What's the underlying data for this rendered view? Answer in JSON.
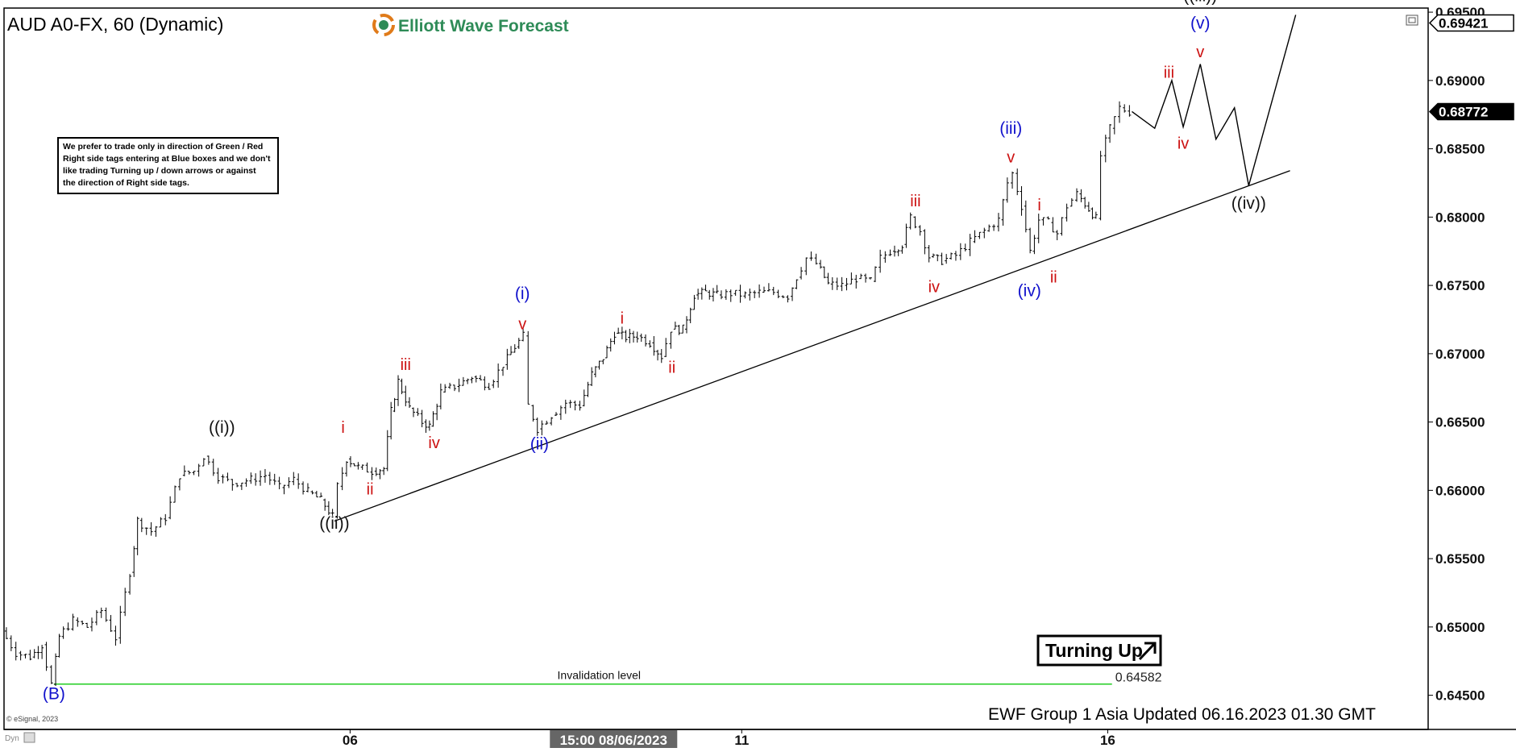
{
  "header": {
    "symbol": "AUD A0-FX, 60 (Dynamic)",
    "brand": "Elliott Wave Forecast"
  },
  "note": {
    "lines": [
      "We prefer to trade only in direction of Green / Red",
      "Right side tags entering at Blue boxes and we don't",
      "like trading Turning up / down arrows or against",
      "the direction of Right side tags."
    ]
  },
  "footer": {
    "copyright": "© eSignal, 2023",
    "updated": "EWF Group 1 Asia Updated 06.16.2023 01.30 GMT",
    "dyn": "Dyn"
  },
  "badge": {
    "label": "Turning Up"
  },
  "colors": {
    "red": "#cc1111",
    "blue": "#1111cc",
    "black": "#111111",
    "invalidation": "#22cc22",
    "brand_green": "#2e8b57"
  },
  "chart_data": {
    "type": "line",
    "symbol": "AUD A0-FX",
    "timeframe": "60",
    "ylim": [
      0.6425,
      0.6953
    ],
    "y_ticks": [
      0.695,
      0.69,
      0.685,
      0.68,
      0.675,
      0.67,
      0.665,
      0.66,
      0.655,
      0.65,
      0.645
    ],
    "y_tick_labels": [
      "0.69500",
      "0.69000",
      "0.68500",
      "0.68000",
      "0.67500",
      "0.67000",
      "0.66500",
      "0.66000",
      "0.65500",
      "0.65000",
      "0.64500"
    ],
    "x_labels": [
      {
        "label": "06",
        "t": 0.243,
        "highlight": false
      },
      {
        "label": "15:00 08/06/2023",
        "t": 0.428,
        "highlight": true
      },
      {
        "label": "11",
        "t": 0.518,
        "highlight": false
      },
      {
        "label": "16",
        "t": 0.775,
        "highlight": false
      }
    ],
    "price_tags": [
      {
        "label": "0.69421",
        "value": 0.69421,
        "style": "boxed"
      },
      {
        "label": "0.68772",
        "value": 0.68772,
        "style": "filled"
      }
    ],
    "invalidation": {
      "label": "Invalidation level",
      "value": 0.64582,
      "value_label": "0.64582",
      "t_start": 0.035,
      "t_end": 0.778
    },
    "trendline": [
      [
        0.232,
        0.65775
      ],
      [
        0.903,
        0.6834
      ]
    ],
    "projection": [
      [
        0.792,
        0.68772
      ],
      [
        0.808,
        0.6865
      ],
      [
        0.82,
        0.69
      ],
      [
        0.828,
        0.6866
      ],
      [
        0.84,
        0.6912
      ],
      [
        0.851,
        0.6857
      ],
      [
        0.864,
        0.688
      ],
      [
        0.874,
        0.6823
      ],
      [
        0.907,
        0.6948
      ]
    ],
    "series": [
      {
        "name": "AUD",
        "points": [
          [
            0.0,
            0.6497
          ],
          [
            0.01,
            0.6481
          ],
          [
            0.02,
            0.6478
          ],
          [
            0.028,
            0.6487
          ],
          [
            0.035,
            0.6458
          ],
          [
            0.04,
            0.6493
          ],
          [
            0.05,
            0.6505
          ],
          [
            0.06,
            0.65
          ],
          [
            0.07,
            0.6512
          ],
          [
            0.08,
            0.6492
          ],
          [
            0.09,
            0.654
          ],
          [
            0.095,
            0.6578
          ],
          [
            0.105,
            0.657
          ],
          [
            0.115,
            0.658
          ],
          [
            0.125,
            0.6611
          ],
          [
            0.135,
            0.6614
          ],
          [
            0.142,
            0.6625
          ],
          [
            0.152,
            0.661
          ],
          [
            0.162,
            0.6605
          ],
          [
            0.175,
            0.6608
          ],
          [
            0.185,
            0.6611
          ],
          [
            0.195,
            0.6602
          ],
          [
            0.205,
            0.6608
          ],
          [
            0.215,
            0.6599
          ],
          [
            0.224,
            0.6593
          ],
          [
            0.232,
            0.6581
          ],
          [
            0.236,
            0.6603
          ],
          [
            0.242,
            0.6623
          ],
          [
            0.25,
            0.6617
          ],
          [
            0.26,
            0.6614
          ],
          [
            0.268,
            0.6616
          ],
          [
            0.273,
            0.6658
          ],
          [
            0.278,
            0.668
          ],
          [
            0.286,
            0.666
          ],
          [
            0.295,
            0.665
          ],
          [
            0.3,
            0.6647
          ],
          [
            0.308,
            0.6672
          ],
          [
            0.318,
            0.6676
          ],
          [
            0.33,
            0.6683
          ],
          [
            0.342,
            0.6677
          ],
          [
            0.352,
            0.6692
          ],
          [
            0.36,
            0.6705
          ],
          [
            0.366,
            0.6713
          ],
          [
            0.37,
            0.6662
          ],
          [
            0.376,
            0.6645
          ],
          [
            0.386,
            0.6655
          ],
          [
            0.396,
            0.6664
          ],
          [
            0.406,
            0.6662
          ],
          [
            0.414,
            0.6685
          ],
          [
            0.422,
            0.6697
          ],
          [
            0.43,
            0.6715
          ],
          [
            0.438,
            0.6712
          ],
          [
            0.446,
            0.6713
          ],
          [
            0.455,
            0.6708
          ],
          [
            0.463,
            0.6698
          ],
          [
            0.47,
            0.6718
          ],
          [
            0.478,
            0.6718
          ],
          [
            0.486,
            0.6743
          ],
          [
            0.494,
            0.6745
          ],
          [
            0.502,
            0.6743
          ],
          [
            0.512,
            0.6744
          ],
          [
            0.522,
            0.6743
          ],
          [
            0.532,
            0.6745
          ],
          [
            0.542,
            0.6745
          ],
          [
            0.552,
            0.6742
          ],
          [
            0.558,
            0.6756
          ],
          [
            0.565,
            0.677
          ],
          [
            0.572,
            0.6766
          ],
          [
            0.58,
            0.6751
          ],
          [
            0.59,
            0.675
          ],
          [
            0.6,
            0.6755
          ],
          [
            0.61,
            0.6753
          ],
          [
            0.617,
            0.677
          ],
          [
            0.624,
            0.6775
          ],
          [
            0.632,
            0.678
          ],
          [
            0.638,
            0.68
          ],
          [
            0.645,
            0.679
          ],
          [
            0.651,
            0.6771
          ],
          [
            0.66,
            0.6768
          ],
          [
            0.67,
            0.6772
          ],
          [
            0.68,
            0.6782
          ],
          [
            0.69,
            0.679
          ],
          [
            0.7,
            0.6798
          ],
          [
            0.706,
            0.6825
          ],
          [
            0.71,
            0.6832
          ],
          [
            0.716,
            0.6808
          ],
          [
            0.722,
            0.6775
          ],
          [
            0.728,
            0.6798
          ],
          [
            0.735,
            0.6796
          ],
          [
            0.741,
            0.6788
          ],
          [
            0.748,
            0.6808
          ],
          [
            0.755,
            0.6817
          ],
          [
            0.763,
            0.6806
          ],
          [
            0.768,
            0.6799
          ],
          [
            0.772,
            0.6845
          ],
          [
            0.778,
            0.6865
          ],
          [
            0.785,
            0.688
          ],
          [
            0.792,
            0.6877
          ]
        ]
      }
    ],
    "wave_labels": [
      {
        "text": "(B)",
        "t": 0.035,
        "v": 0.6447,
        "color": "blue"
      },
      {
        "text": "((i))",
        "t": 0.153,
        "v": 0.6642,
        "color": "black"
      },
      {
        "text": "((ii))",
        "t": 0.232,
        "v": 0.6572,
        "color": "black"
      },
      {
        "text": "i",
        "t": 0.238,
        "v": 0.6642,
        "color": "red"
      },
      {
        "text": "ii",
        "t": 0.257,
        "v": 0.6597,
        "color": "red"
      },
      {
        "text": "iii",
        "t": 0.282,
        "v": 0.6688,
        "color": "red"
      },
      {
        "text": "iv",
        "t": 0.302,
        "v": 0.6631,
        "color": "red"
      },
      {
        "text": "(i)",
        "t": 0.364,
        "v": 0.674,
        "color": "blue"
      },
      {
        "text": "v",
        "t": 0.364,
        "v": 0.6718,
        "color": "red"
      },
      {
        "text": "(ii)",
        "t": 0.376,
        "v": 0.663,
        "color": "blue"
      },
      {
        "text": "i",
        "t": 0.434,
        "v": 0.6722,
        "color": "red"
      },
      {
        "text": "ii",
        "t": 0.469,
        "v": 0.6686,
        "color": "red"
      },
      {
        "text": "iii",
        "t": 0.64,
        "v": 0.6808,
        "color": "red"
      },
      {
        "text": "iv",
        "t": 0.653,
        "v": 0.6745,
        "color": "red"
      },
      {
        "text": "(iii)",
        "t": 0.707,
        "v": 0.6861,
        "color": "blue"
      },
      {
        "text": "v",
        "t": 0.707,
        "v": 0.684,
        "color": "red"
      },
      {
        "text": "(iv)",
        "t": 0.72,
        "v": 0.6742,
        "color": "blue"
      },
      {
        "text": "i",
        "t": 0.727,
        "v": 0.6805,
        "color": "red"
      },
      {
        "text": "ii",
        "t": 0.737,
        "v": 0.6752,
        "color": "red"
      },
      {
        "text": "iii",
        "t": 0.818,
        "v": 0.6902,
        "color": "red"
      },
      {
        "text": "iv",
        "t": 0.828,
        "v": 0.685,
        "color": "red"
      },
      {
        "text": "((iii))",
        "t": 0.84,
        "v": 0.6958,
        "color": "black"
      },
      {
        "text": "(v)",
        "t": 0.84,
        "v": 0.6938,
        "color": "blue"
      },
      {
        "text": "v",
        "t": 0.84,
        "v": 0.6917,
        "color": "red"
      },
      {
        "text": "((iv))",
        "t": 0.874,
        "v": 0.6806,
        "color": "black"
      }
    ]
  }
}
